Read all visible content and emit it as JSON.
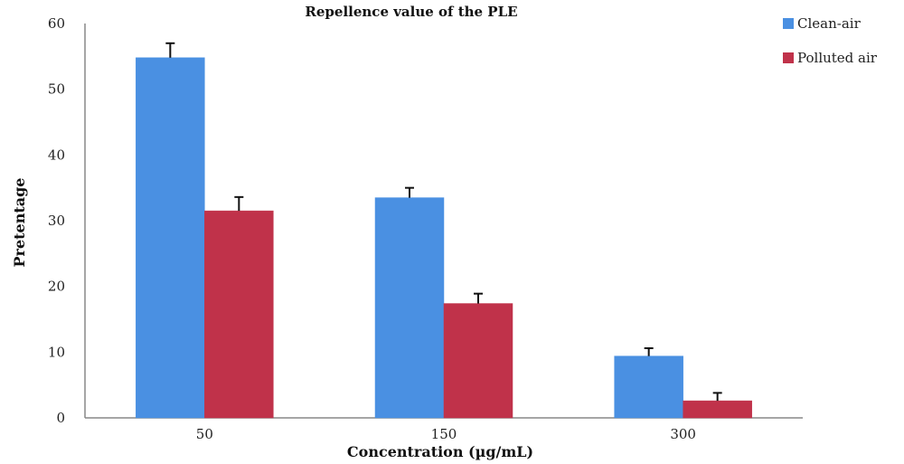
{
  "chart_data": {
    "type": "bar",
    "title": "Repellence value of the PLE",
    "xlabel": "Concentration (µg/mL)",
    "ylabel": "Pretentage",
    "categories": [
      "50",
      "150",
      "300"
    ],
    "ylim": [
      0,
      60
    ],
    "yticks": [
      0,
      10,
      20,
      30,
      40,
      50,
      60
    ],
    "grid": false,
    "legend_position": "top-right",
    "series": [
      {
        "name": "Clean-air",
        "color": "#4a90e2",
        "values": [
          54.8,
          33.5,
          9.4
        ],
        "errors": [
          2.2,
          1.5,
          1.2
        ]
      },
      {
        "name": "Polluted air",
        "color": "#c0324a",
        "values": [
          31.5,
          17.4,
          2.6
        ],
        "errors": [
          2.1,
          1.5,
          1.2
        ]
      }
    ]
  }
}
